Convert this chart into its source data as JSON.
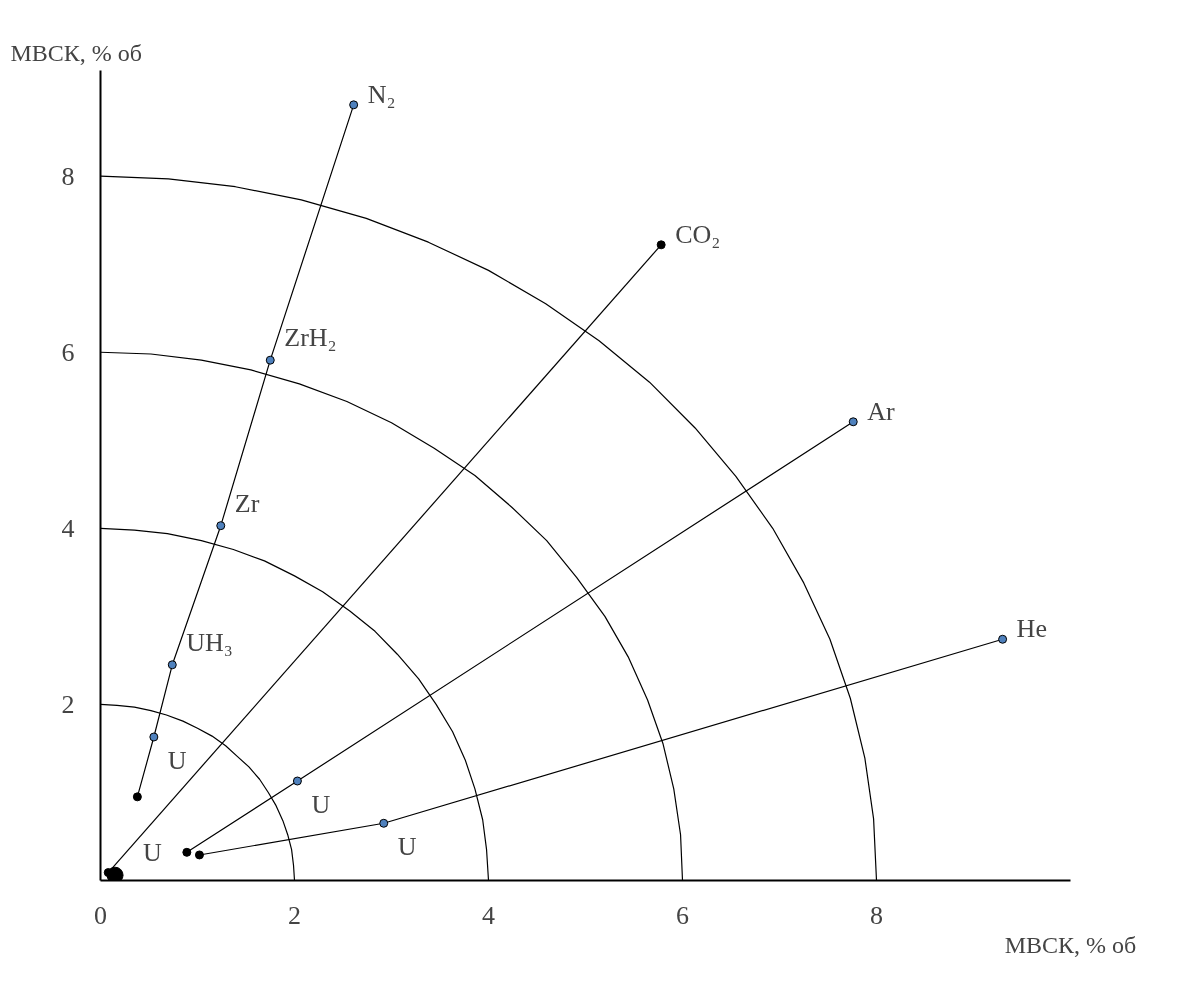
{
  "chart_data": {
    "type": "line",
    "xlabel": "МВСК, % об",
    "ylabel": "МВСК, % об",
    "xlim": [
      0,
      10
    ],
    "ylim": [
      0,
      9.2
    ],
    "xticks": [
      0,
      2,
      4,
      6,
      8
    ],
    "yticks": [
      2,
      4,
      6,
      8
    ],
    "marker": "circle",
    "series": [
      {
        "name": "N₂",
        "color": "#000000",
        "x": [
          0.38,
          0.55,
          0.74,
          1.24,
          1.75,
          2.61
        ],
        "values": [
          0.95,
          1.63,
          2.45,
          4.03,
          5.91,
          8.81
        ],
        "colors": [
          "#000000",
          "#4f81bd",
          "#4f81bd",
          "#4f81bd",
          "#4f81bd",
          "#4f81bd"
        ]
      },
      {
        "name": "CO₂",
        "color": "#000000",
        "x": [
          0.08,
          5.78
        ],
        "values": [
          0.09,
          7.22
        ],
        "colors": [
          "#000000",
          "#000000"
        ]
      },
      {
        "name": "Ar",
        "color": "#000000",
        "x": [
          0.89,
          2.03,
          7.76
        ],
        "values": [
          0.32,
          1.13,
          5.21
        ],
        "colors": [
          "#000000",
          "#4f81bd",
          "#4f81bd"
        ]
      },
      {
        "name": "He",
        "color": "#000000",
        "x": [
          1.02,
          2.92,
          9.3
        ],
        "values": [
          0.29,
          0.65,
          2.74
        ],
        "colors": [
          "#000000",
          "#4f81bd",
          "#4f81bd"
        ]
      },
      {
        "type": "scatter",
        "color": "#000000",
        "x": [
          0.15
        ],
        "values": [
          0.06
        ]
      },
      {
        "marker": "none",
        "color": "#000000",
        "x": [
          2,
          1.99,
          1.97,
          1.93,
          1.88,
          1.81,
          1.73,
          1.64,
          1.53,
          1.41,
          1.29,
          1.15,
          1,
          0.85,
          0.68,
          0.52,
          0.35,
          0.17,
          0
        ],
        "values": [
          0,
          0.17,
          0.35,
          0.52,
          0.68,
          0.85,
          1,
          1.15,
          1.29,
          1.41,
          1.53,
          1.64,
          1.73,
          1.81,
          1.88,
          1.93,
          1.97,
          1.99,
          2
        ]
      },
      {
        "marker": "none",
        "color": "#000000",
        "x": [
          4,
          3.98,
          3.94,
          3.86,
          3.76,
          3.63,
          3.46,
          3.28,
          3.06,
          2.83,
          2.57,
          2.29,
          2,
          1.69,
          1.37,
          1.04,
          0.69,
          0.35,
          0
        ],
        "values": [
          0,
          0.35,
          0.69,
          1.04,
          1.37,
          1.69,
          2,
          2.29,
          2.57,
          2.83,
          3.06,
          3.28,
          3.46,
          3.63,
          3.76,
          3.86,
          3.94,
          3.98,
          4
        ]
      },
      {
        "marker": "none",
        "color": "#000000",
        "x": [
          6,
          5.98,
          5.91,
          5.8,
          5.64,
          5.44,
          5.2,
          4.91,
          4.6,
          4.24,
          3.86,
          3.44,
          3,
          2.54,
          2.05,
          1.55,
          1.04,
          0.52,
          0
        ],
        "values": [
          0,
          0.52,
          1.04,
          1.55,
          2.05,
          2.54,
          3,
          3.44,
          3.86,
          4.24,
          4.6,
          4.91,
          5.2,
          5.44,
          5.64,
          5.8,
          5.91,
          5.98,
          6
        ]
      },
      {
        "marker": "none",
        "color": "#000000",
        "x": [
          8,
          7.97,
          7.88,
          7.73,
          7.52,
          7.25,
          6.93,
          6.55,
          6.13,
          5.66,
          5.14,
          4.59,
          4,
          3.38,
          2.74,
          2.07,
          1.39,
          0.7,
          0
        ],
        "values": [
          0,
          0.7,
          1.39,
          2.07,
          2.74,
          3.38,
          4,
          4.59,
          5.14,
          5.66,
          6.13,
          6.55,
          6.93,
          7.25,
          7.52,
          7.73,
          7.88,
          7.97,
          8
        ]
      }
    ],
    "annotations": [
      {
        "text": "U",
        "x": 0.55,
        "y": 1.63
      },
      {
        "text": "UH₃",
        "x": 0.74,
        "y": 2.45
      },
      {
        "text": "Zr",
        "x": 1.24,
        "y": 4.03
      },
      {
        "text": "ZrH₂",
        "x": 1.75,
        "y": 5.91
      },
      {
        "text": "U",
        "x": 2.03,
        "y": 1.13
      },
      {
        "text": "U",
        "x": 2.92,
        "y": 0.65
      },
      {
        "text": "U",
        "x": 0.15,
        "y": 0.06
      }
    ]
  }
}
